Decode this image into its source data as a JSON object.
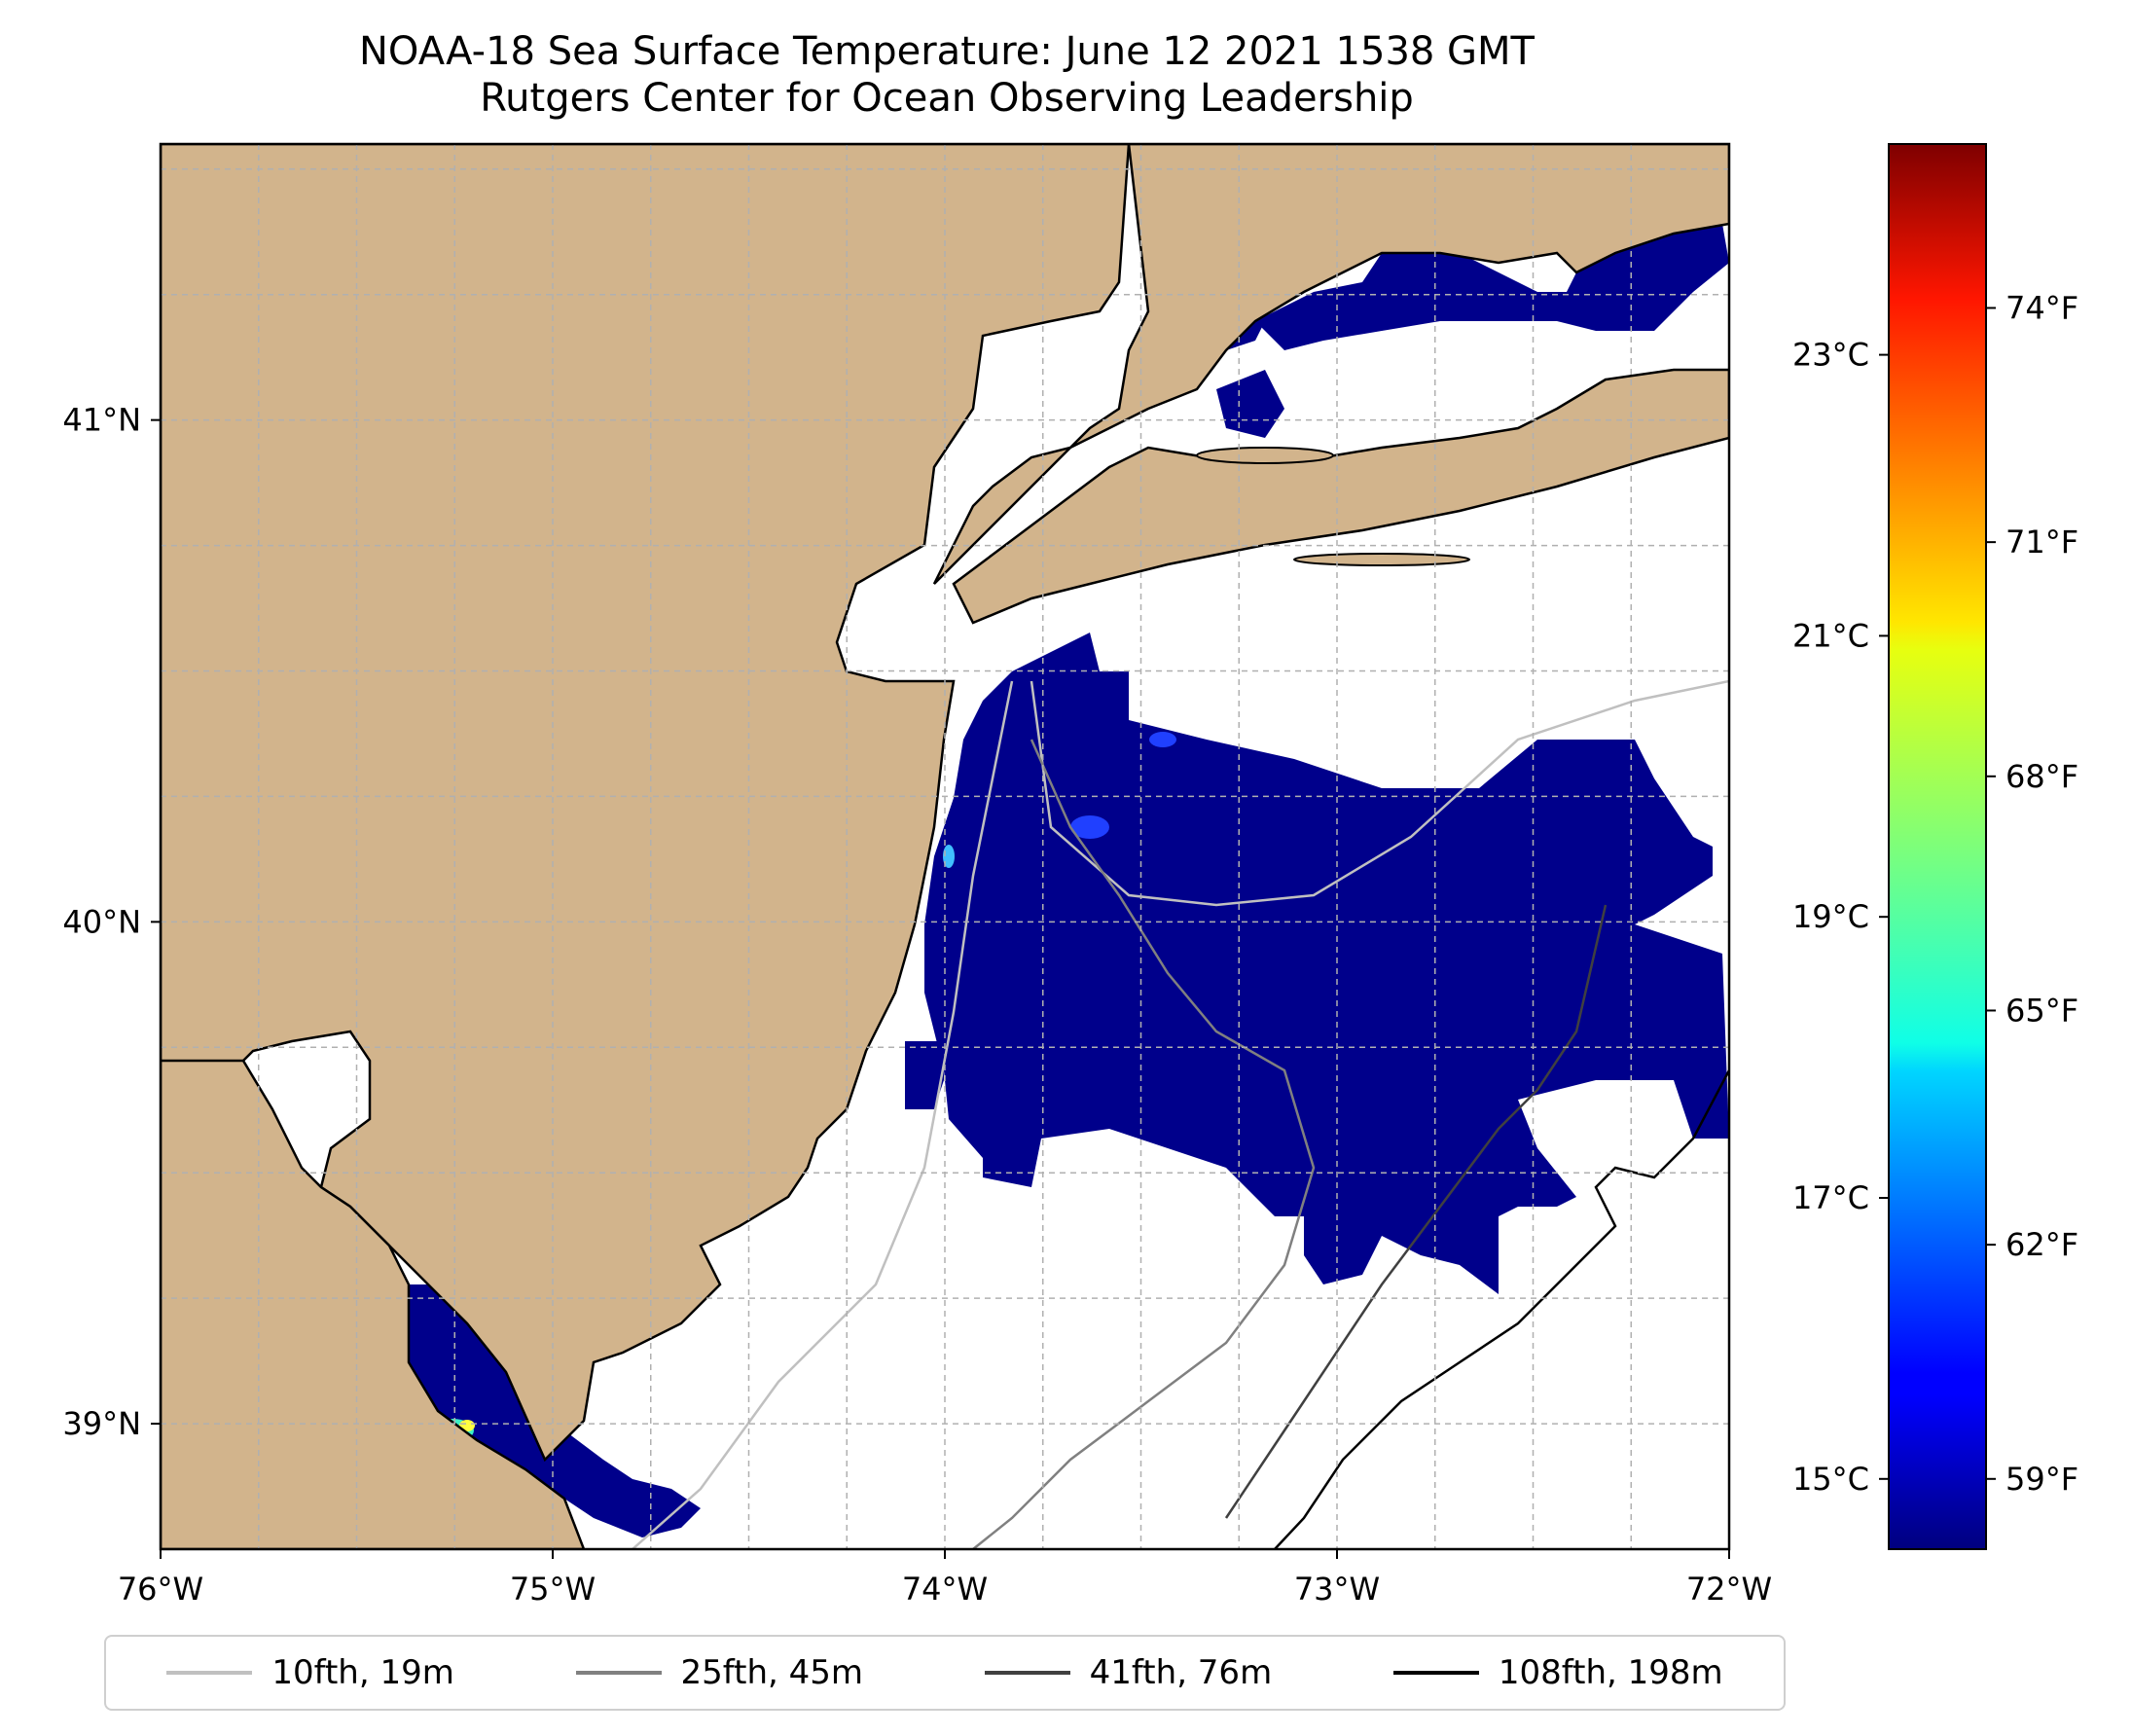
{
  "title": "NOAA-18 Sea Surface Temperature: June 12 2021 1538 GMT",
  "subtitle": "Rutgers Center for Ocean Observing Leadership",
  "colors": {
    "land": "#d2b48c",
    "ocean_cold": "#00008b",
    "coast": "#000000",
    "grid": "#b0b0b0"
  },
  "map": {
    "lon_range": [
      -76,
      -72
    ],
    "lat_range": [
      38.75,
      41.55
    ],
    "lon_ticks": [
      "76°W",
      "75°W",
      "74°W",
      "73°W",
      "72°W"
    ],
    "lat_ticks": [
      "41°N",
      "40°N",
      "39°N"
    ]
  },
  "colorbar": {
    "celsius_ticks": [
      "23°C",
      "21°C",
      "19°C",
      "17°C",
      "15°C"
    ],
    "fahrenheit_ticks": [
      "74°F",
      "71°F",
      "68°F",
      "65°F",
      "62°F",
      "59°F"
    ],
    "colormap": "jet"
  },
  "legend": [
    {
      "label": "10fth, 19m",
      "color": "#c0c0c0"
    },
    {
      "label": "25fth, 45m",
      "color": "#808080"
    },
    {
      "label": "41fth, 76m",
      "color": "#404040"
    },
    {
      "label": "108fth, 198m",
      "color": "#000000"
    }
  ]
}
